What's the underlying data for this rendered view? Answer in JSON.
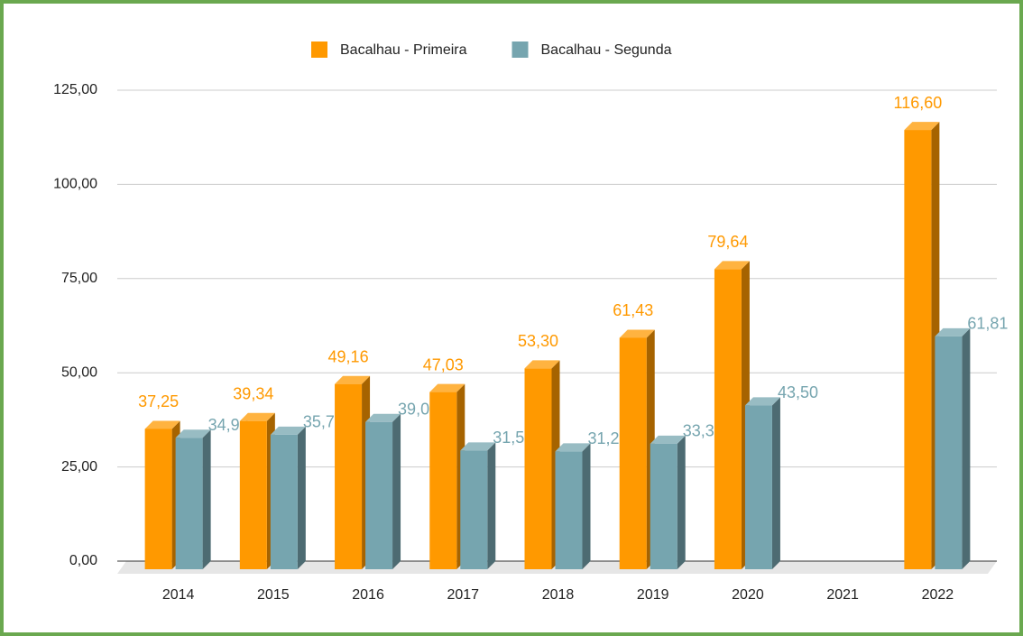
{
  "chart_data": {
    "type": "bar3d",
    "categories": [
      "2014",
      "2015",
      "2016",
      "2017",
      "2018",
      "2019",
      "2020",
      "2021",
      "2022"
    ],
    "series": [
      {
        "name": "Bacalhau - Primeira",
        "color": "#ff9900",
        "values": [
          37.25,
          39.34,
          49.16,
          47.03,
          53.3,
          61.43,
          79.64,
          null,
          116.6
        ],
        "value_labels": [
          "37,25",
          "39,34",
          "49,16",
          "47,03",
          "53,30",
          "61,43",
          "79,64",
          null,
          "116,60"
        ]
      },
      {
        "name": "Bacalhau - Segunda",
        "color": "#76a5af",
        "values": [
          34.9,
          35.7,
          39.09,
          31.52,
          31.27,
          33.32,
          43.5,
          null,
          61.81
        ],
        "value_labels": [
          "34,90",
          "35,70",
          "39,09",
          "31,52",
          "31,27",
          "33,32",
          "43,50",
          null,
          "61,81"
        ]
      }
    ],
    "ylim": [
      0,
      125
    ],
    "yticks": [
      {
        "value": 0,
        "label": "0,00"
      },
      {
        "value": 25,
        "label": "25,00"
      },
      {
        "value": 50,
        "label": "50,00"
      },
      {
        "value": 75,
        "label": "75,00"
      },
      {
        "value": 100,
        "label": "100,00"
      },
      {
        "value": 125,
        "label": "125,00"
      }
    ],
    "grid": true,
    "legend": "top"
  }
}
